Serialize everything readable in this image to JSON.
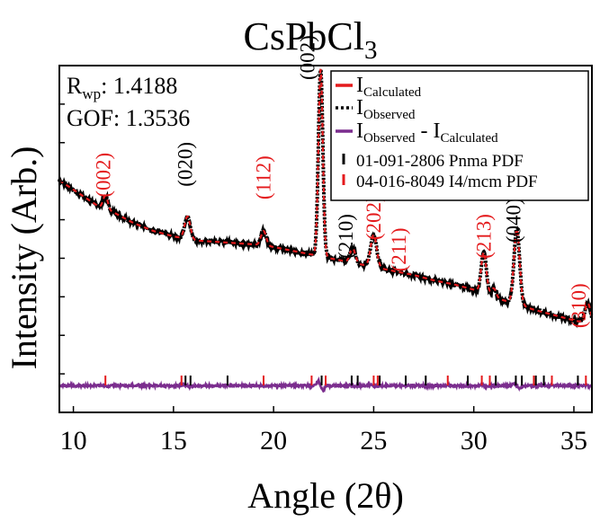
{
  "chart_data": {
    "type": "line",
    "title": {
      "main": "CsPbCl",
      "sub": "3"
    },
    "xlabel": "Angle (2θ)",
    "ylabel": "Intensity (Arb.)",
    "xlim": [
      9.3,
      35.9
    ],
    "ylim": [
      0,
      100
    ],
    "x_ticks": [
      10,
      15,
      20,
      25,
      30,
      35
    ],
    "stats": {
      "rwp": {
        "label_main": "R",
        "label_sub": "wp",
        "value": ": 1.4188"
      },
      "gof": "GOF: 1.3536"
    },
    "legend": {
      "position": "top-right",
      "entries": [
        {
          "main": "I",
          "sub": "Calculated",
          "rest": "",
          "rest_sub": "",
          "style": "line",
          "color": "#e41a1c"
        },
        {
          "main": "I",
          "sub": "Observed",
          "rest": "",
          "rest_sub": "",
          "style": "dots",
          "color": "#000000"
        },
        {
          "main": "I",
          "sub": "Observed",
          "rest": " - I",
          "rest_sub": "Calculated",
          "style": "line",
          "color": "#7b2d8e"
        },
        {
          "main": "01-091-2806 Pnma PDF",
          "sub": "",
          "rest": "",
          "rest_sub": "",
          "style": "tick",
          "color": "#000000"
        },
        {
          "main": "04-016-8049 I4/mcm PDF",
          "sub": "",
          "rest": "",
          "rest_sub": "",
          "style": "tick",
          "color": "#e41a1c"
        }
      ]
    },
    "background": [
      [
        9.3,
        57
      ],
      [
        10.5,
        51
      ],
      [
        11.3,
        47
      ],
      [
        12,
        45
      ],
      [
        13,
        41
      ],
      [
        14,
        38
      ],
      [
        15,
        36
      ],
      [
        16,
        34.5
      ],
      [
        17,
        34
      ],
      [
        18,
        33.5
      ],
      [
        19,
        33
      ],
      [
        20,
        32
      ],
      [
        21,
        30.5
      ],
      [
        22,
        29
      ],
      [
        23,
        27.5
      ],
      [
        24,
        26
      ],
      [
        25,
        24.5
      ],
      [
        26,
        23
      ],
      [
        27,
        21.5
      ],
      [
        28,
        19.5
      ],
      [
        29,
        18
      ],
      [
        30,
        16
      ],
      [
        31,
        13
      ],
      [
        32,
        11
      ],
      [
        33,
        8.5
      ],
      [
        34,
        6.5
      ],
      [
        35,
        4.5
      ],
      [
        35.9,
        3
      ]
    ],
    "peaks": [
      {
        "center": 11.6,
        "height": 5,
        "width": 0.12
      },
      {
        "center": 15.7,
        "height": 8.5,
        "width": 0.14
      },
      {
        "center": 19.5,
        "height": 5.5,
        "width": 0.13
      },
      {
        "center": 22.35,
        "height": 70,
        "width": 0.11
      },
      {
        "center": 23.95,
        "height": 5.5,
        "width": 0.13
      },
      {
        "center": 25.0,
        "height": 12,
        "width": 0.15
      },
      {
        "center": 30.5,
        "height": 15.5,
        "width": 0.13
      },
      {
        "center": 31.0,
        "height": 3.5,
        "width": 0.12
      },
      {
        "center": 32.15,
        "height": 28,
        "width": 0.14
      },
      {
        "center": 35.7,
        "height": 7.5,
        "width": 0.14
      }
    ],
    "difference_baseline": -20,
    "ticks_pnma": [
      15.6,
      15.85,
      17.7,
      22.4,
      23.9,
      24.2,
      25.3,
      26.6,
      27.6,
      29.7,
      31.1,
      32.1,
      32.4,
      33.1,
      33.5,
      35.2
    ],
    "ticks_i4mcm": [
      11.6,
      15.4,
      19.5,
      21.9,
      22.6,
      25.0,
      25.2,
      28.7,
      30.4,
      30.8,
      33.0,
      33.9,
      35.6
    ],
    "annotations": [
      {
        "text": "(002)",
        "x": 11.6,
        "y": 59,
        "color": "#e41a1c"
      },
      {
        "text": "(020)",
        "x": 15.7,
        "y": 63,
        "color": "#000000"
      },
      {
        "text": "(112)",
        "x": 19.6,
        "y": 58,
        "color": "#e41a1c"
      },
      {
        "text": "(002)",
        "x": 21.8,
        "y": 103,
        "color": "#000000"
      },
      {
        "text": "(210)",
        "x": 23.7,
        "y": 36,
        "color": "#000000"
      },
      {
        "text": "(202)",
        "x": 25.1,
        "y": 43,
        "color": "#e41a1c"
      },
      {
        "text": "(211)",
        "x": 26.35,
        "y": 31,
        "color": "#e41a1c"
      },
      {
        "text": "(213)",
        "x": 30.6,
        "y": 36,
        "color": "#e41a1c"
      },
      {
        "text": "(040)",
        "x": 32.1,
        "y": 42,
        "color": "#000000"
      },
      {
        "text": "(310)",
        "x": 35.35,
        "y": 10,
        "color": "#e41a1c"
      }
    ]
  }
}
